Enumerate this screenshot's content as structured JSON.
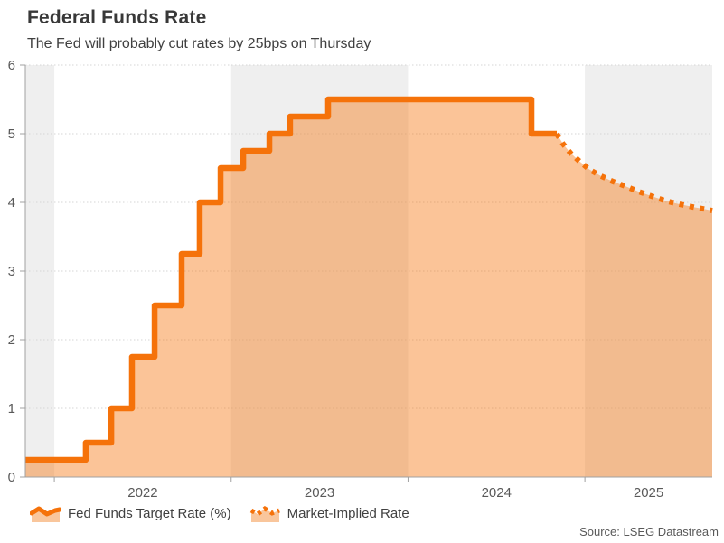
{
  "header": {
    "title": "Federal Funds Rate",
    "subtitle": "The Fed will probably cut rates by 25bps on Thursday"
  },
  "source": "Source: LSEG Datastream",
  "legend": [
    {
      "label": "Fed Funds Target Rate (%)",
      "style": "solid"
    },
    {
      "label": "Market-Implied Rate",
      "style": "dotted"
    }
  ],
  "colors": {
    "line": "#F5720A",
    "fill": "rgba(245,114,10,0.42)",
    "swatch_fill": "#F9C69C",
    "band": "#EFEFEF",
    "grid": "#D6D6D6",
    "axis": "#A0A0A0",
    "tick_text": "#595959"
  },
  "chart_data": {
    "type": "line",
    "title": "Federal Funds Rate",
    "subtitle": "The Fed will probably cut rates by 25bps on Thursday",
    "units": "%",
    "legend_position": "bottom",
    "grid": "horizontal-dotted",
    "x_axis": {
      "min": 2021.836,
      "max": 2025.72,
      "ticks": [
        2022,
        2023,
        2024,
        2025
      ],
      "tick_labels": [
        "2022",
        "2023",
        "2024",
        "2025"
      ]
    },
    "y_axis": {
      "min": 0,
      "max": 6,
      "ticks": [
        0,
        1,
        2,
        3,
        4,
        5,
        6
      ]
    },
    "bands": [
      [
        2021.836,
        2022
      ],
      [
        2023,
        2024
      ],
      [
        2025,
        2025.72
      ]
    ],
    "series": [
      {
        "name": "Fed Funds Target Rate (%)",
        "draw": "step",
        "style": "solid",
        "points": [
          [
            2021.836,
            0.25
          ],
          [
            2022.178,
            0.5
          ],
          [
            2022.322,
            1.0
          ],
          [
            2022.439,
            1.75
          ],
          [
            2022.567,
            2.5
          ],
          [
            2022.72,
            3.25
          ],
          [
            2022.822,
            4.0
          ],
          [
            2022.94,
            4.5
          ],
          [
            2023.068,
            4.75
          ],
          [
            2023.216,
            5.0
          ],
          [
            2023.333,
            5.25
          ],
          [
            2023.548,
            5.5
          ],
          [
            2024.698,
            5.0
          ],
          [
            2024.841,
            5.0
          ]
        ]
      },
      {
        "name": "Market-Implied Rate",
        "draw": "curve",
        "style": "dotted",
        "points": [
          [
            2024.841,
            5.0
          ],
          [
            2024.877,
            4.85
          ],
          [
            2024.918,
            4.72
          ],
          [
            2024.969,
            4.6
          ],
          [
            2025.025,
            4.48
          ],
          [
            2025.086,
            4.39
          ],
          [
            2025.153,
            4.31
          ],
          [
            2025.224,
            4.24
          ],
          [
            2025.301,
            4.16
          ],
          [
            2025.378,
            4.09
          ],
          [
            2025.459,
            4.02
          ],
          [
            2025.541,
            3.97
          ],
          [
            2025.618,
            3.93
          ],
          [
            2025.684,
            3.9
          ],
          [
            2025.72,
            3.88
          ]
        ]
      }
    ]
  }
}
